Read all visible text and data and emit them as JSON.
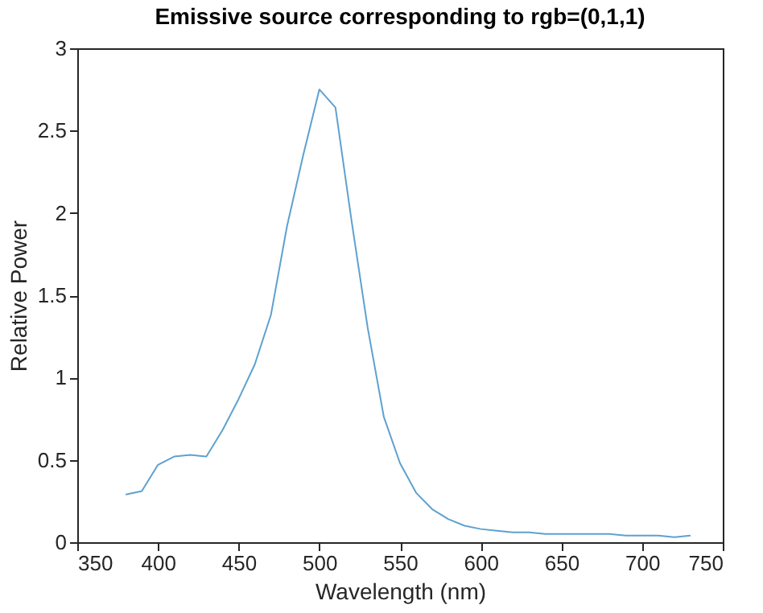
{
  "chart_data": {
    "type": "line",
    "title": "Emissive source corresponding to rgb=(0,1,1)",
    "xlabel": "Wavelength (nm)",
    "ylabel": "Relative Power",
    "x": [
      380,
      390,
      400,
      410,
      420,
      430,
      440,
      450,
      460,
      470,
      480,
      490,
      500,
      510,
      520,
      530,
      540,
      550,
      560,
      570,
      580,
      590,
      600,
      610,
      620,
      630,
      640,
      650,
      660,
      670,
      680,
      690,
      700,
      710,
      720,
      730
    ],
    "series": [
      {
        "color": "#5ea1cf",
        "values": [
          0.29,
          0.31,
          0.47,
          0.52,
          0.53,
          0.52,
          0.68,
          0.87,
          1.08,
          1.38,
          1.92,
          2.35,
          2.75,
          2.64,
          1.95,
          1.3,
          0.76,
          0.48,
          0.3,
          0.2,
          0.14,
          0.1,
          0.08,
          0.07,
          0.06,
          0.06,
          0.05,
          0.05,
          0.05,
          0.05,
          0.05,
          0.04,
          0.04,
          0.04,
          0.03,
          0.04
        ]
      }
    ],
    "xlim": [
      350,
      750
    ],
    "xticks": [
      350,
      400,
      450,
      500,
      550,
      600,
      650,
      700,
      750
    ],
    "ylim": [
      0,
      3
    ],
    "yticks": [
      0,
      0.5,
      1,
      1.5,
      2,
      2.5,
      3
    ],
    "marker": "none",
    "line_style": "solid"
  }
}
